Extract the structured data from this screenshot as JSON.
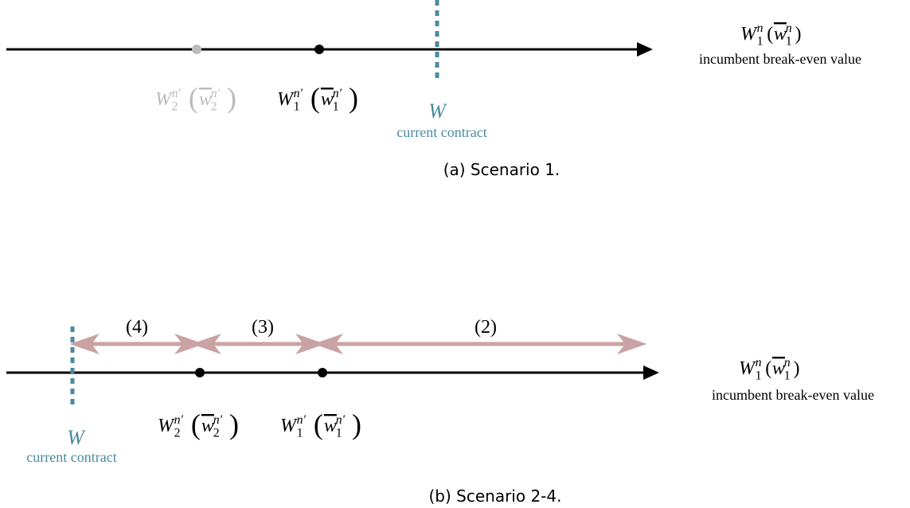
{
  "panels": [
    {
      "caption": "(a) Scenario 1.",
      "points": [
        {
          "label": {
            "var": "W",
            "sub": "2",
            "sup": "n′",
            "open": "(",
            "arg": {
              "var": "w",
              "sub": "2",
              "sup": "n′"
            },
            "close": ")"
          }
        },
        {
          "label": {
            "var": "W",
            "sub": "1",
            "sup": "n′",
            "open": "(",
            "arg": {
              "var": "w",
              "sub": "1",
              "sup": "n′"
            },
            "close": ")"
          }
        }
      ],
      "contract": {
        "symbol": "W",
        "label": "current contract"
      },
      "axis_label": {
        "math": {
          "var": "W",
          "sub": "1",
          "sup": "n",
          "open": "(",
          "arg": {
            "var": "w",
            "sub": "1",
            "sup": "n"
          },
          "close": ")"
        },
        "text": "incumbent break-even value"
      }
    },
    {
      "caption": "(b) Scenario 2-4.",
      "points": [
        {
          "label": {
            "var": "W",
            "sub": "2",
            "sup": "n′",
            "open": "(",
            "arg": {
              "var": "w",
              "sub": "2",
              "sup": "n′"
            },
            "close": ")"
          }
        },
        {
          "label": {
            "var": "W",
            "sub": "1",
            "sup": "n′",
            "open": "(",
            "arg": {
              "var": "w",
              "sub": "1",
              "sup": "n′"
            },
            "close": ")"
          }
        }
      ],
      "contract": {
        "symbol": "W",
        "label": "current contract"
      },
      "axis_label": {
        "math": {
          "var": "W",
          "sub": "1",
          "sup": "n",
          "open": "(",
          "arg": {
            "var": "w",
            "sub": "1",
            "sup": "n"
          },
          "close": ")"
        },
        "text": "incumbent break-even value"
      },
      "ranges": [
        {
          "label": "(4)"
        },
        {
          "label": "(3)"
        },
        {
          "label": "(2)"
        }
      ]
    }
  ]
}
